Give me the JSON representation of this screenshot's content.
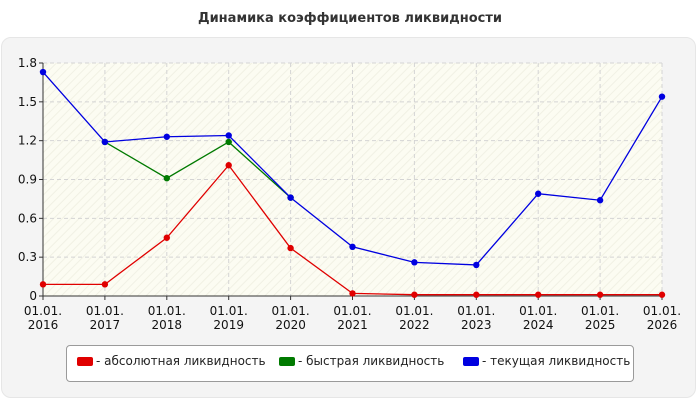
{
  "chart_data": {
    "type": "line",
    "title": "Динамика коэффициентов ликвидности",
    "categories": [
      [
        "01.01.",
        "2016"
      ],
      [
        "01.01.",
        "2017"
      ],
      [
        "01.01.",
        "2018"
      ],
      [
        "01.01.",
        "2019"
      ],
      [
        "01.01.",
        "2020"
      ],
      [
        "01.01.",
        "2021"
      ],
      [
        "01.01.",
        "2022"
      ],
      [
        "01.01.",
        "2023"
      ],
      [
        "01.01.",
        "2024"
      ],
      [
        "01.01.",
        "2025"
      ],
      [
        "01.01.",
        "2026"
      ]
    ],
    "y_ticks": [
      "0",
      "0.3",
      "0.6",
      "0.9",
      "1.2",
      "1.5",
      "1.8"
    ],
    "ylim": [
      0,
      1.8
    ],
    "grid": true,
    "legend_position": "bottom",
    "series": [
      {
        "name": "- абсолютная ликвидность",
        "color": "#e00000",
        "values": [
          0.09,
          0.09,
          0.45,
          1.01,
          0.37,
          0.02,
          0.01,
          0.01,
          0.01,
          0.01,
          0.01
        ]
      },
      {
        "name": "- быстрая ликвидность",
        "color": "#007a00",
        "values": [
          null,
          1.19,
          0.91,
          1.19,
          0.76,
          null,
          null,
          null,
          null,
          null,
          null
        ]
      },
      {
        "name": "- текущая ликвидность",
        "color": "#0000e0",
        "values": [
          1.73,
          1.19,
          1.23,
          1.24,
          0.76,
          0.38,
          0.26,
          0.24,
          0.79,
          0.74,
          1.54
        ]
      }
    ]
  }
}
